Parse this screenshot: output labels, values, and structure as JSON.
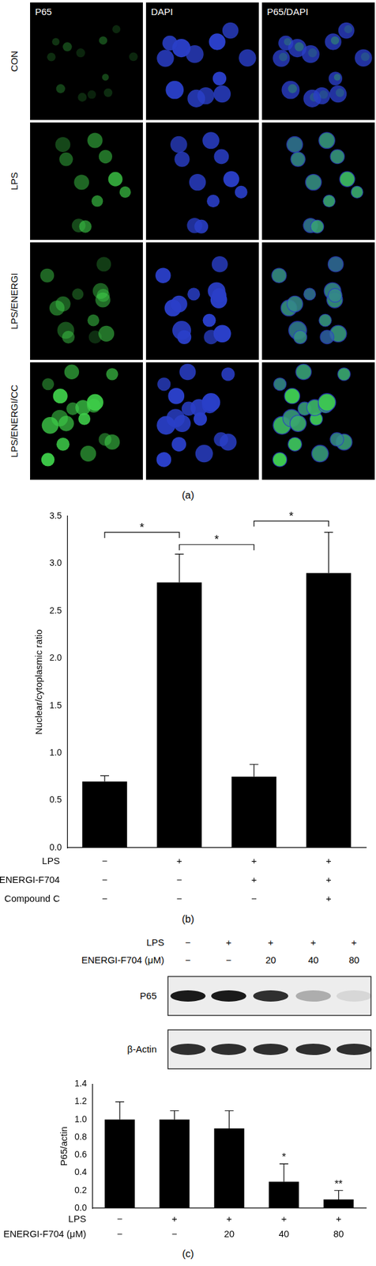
{
  "figure_a": {
    "panel_label": "(a)",
    "columns": [
      "P65",
      "DAPI",
      "P65/DAPI"
    ],
    "rows": [
      "CON",
      "LPS",
      "LPS/ENERGI",
      "LPS/ENERGI/CC"
    ]
  },
  "chart_data": [
    {
      "type": "bar",
      "title": "(b)",
      "y_label": "Nuclear/cytoplasmic ratio",
      "categories": [
        [
          "−",
          "−",
          "−"
        ],
        [
          "+",
          "−",
          "−"
        ],
        [
          "+",
          "+",
          "−"
        ],
        [
          "+",
          "+",
          "+"
        ]
      ],
      "category_rows": [
        "LPS",
        "ENERGI-F704",
        "Compound C"
      ],
      "values": [
        0.7,
        2.8,
        0.75,
        2.9
      ],
      "errors": [
        0.06,
        0.3,
        0.13,
        0.43
      ],
      "color": "#000000",
      "ylim": [
        0,
        3.5
      ],
      "yticks": [
        {
          "value": 0,
          "label": "0.0"
        },
        0.5,
        {
          "value": 1,
          "label": "1.0"
        },
        1.5,
        {
          "value": 2,
          "label": "2.0"
        },
        2.5,
        {
          "value": 3,
          "label": "3.0"
        },
        3.5
      ],
      "grid": false,
      "significance": [
        {
          "from": 0,
          "to": 1,
          "y": 3.33,
          "label": "*"
        },
        {
          "from": 1,
          "to": 2,
          "y": 3.2,
          "label": "*"
        },
        {
          "from": 2,
          "to": 3,
          "y": 3.45,
          "label": "*"
        }
      ]
    },
    {
      "type": "bar",
      "title": "(c)",
      "y_label": "P65/actin",
      "categories": [
        [
          "−",
          "−"
        ],
        [
          "+",
          "−"
        ],
        [
          "+",
          "20"
        ],
        [
          "+",
          "40"
        ],
        [
          "+",
          "80"
        ]
      ],
      "category_rows": [
        "LPS",
        "ENERGI-F704 (μM)"
      ],
      "values": [
        1.0,
        1.0,
        0.9,
        0.3,
        0.1
      ],
      "errors": [
        0.2,
        0.1,
        0.2,
        0.2,
        0.1
      ],
      "significance_labels": [
        null,
        null,
        null,
        "*",
        "**"
      ],
      "color": "#000000",
      "ylim": [
        0,
        1.4
      ],
      "yticks": [
        {
          "value": 0,
          "label": "0.0"
        },
        0.2,
        0.4,
        0.6,
        0.8,
        {
          "value": 1,
          "label": "1.0"
        },
        1.2,
        1.4
      ],
      "grid": false
    }
  ],
  "blot_c": {
    "column_rows": [
      {
        "name": "LPS",
        "labels": [
          "−",
          "+",
          "+",
          "+",
          "+"
        ]
      },
      {
        "name": "ENERGI-F704 (μM)",
        "labels": [
          "−",
          "−",
          "20",
          "40",
          "80"
        ]
      }
    ],
    "bands": [
      "P65",
      "β-Actin"
    ]
  }
}
